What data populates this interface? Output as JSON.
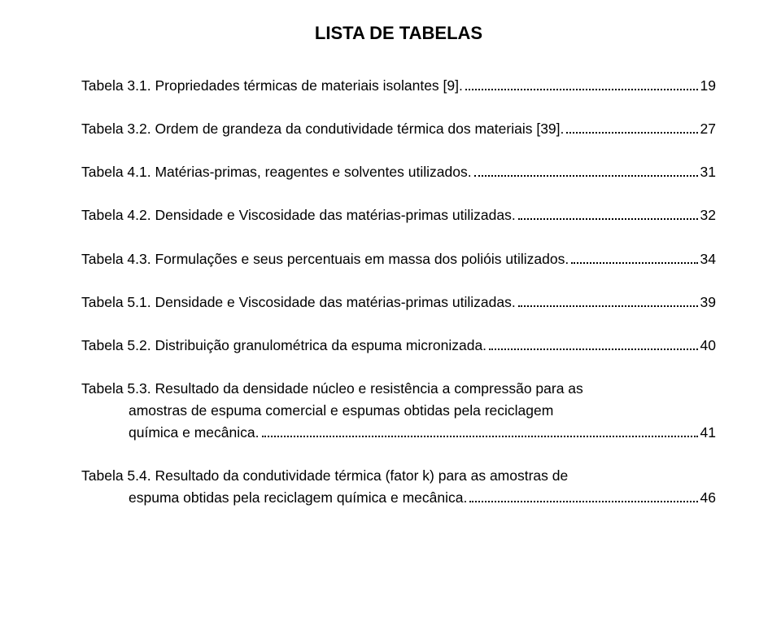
{
  "title": "LISTA DE TABELAS",
  "entries": [
    {
      "label": "Tabela 3.1. Propriedades térmicas de materiais isolantes [9].",
      "page": "19"
    },
    {
      "label": "Tabela 3.2. Ordem de grandeza da condutividade térmica dos materiais [39].",
      "page": "27"
    },
    {
      "label": "Tabela 4.1. Matérias-primas, reagentes e solventes utilizados.",
      "page": "31"
    },
    {
      "label": "Tabela 4.2. Densidade e Viscosidade das matérias-primas utilizadas.",
      "page": "32"
    },
    {
      "label": "Tabela 4.3. Formulações  e seus percentuais em massa dos polióis utilizados.",
      "page": "34"
    },
    {
      "label": "Tabela 5.1. Densidade e Viscosidade das matérias-primas utilizadas.",
      "page": "39"
    },
    {
      "label": "Tabela 5.2. Distribuição granulométrica da espuma micronizada.",
      "page": "40"
    },
    {
      "multiline": true,
      "line1": "Tabela 5.3. Resultado da densidade núcleo e resistência a compressão para as",
      "line2": "amostras de espuma comercial e espumas obtidas pela reciclagem",
      "line3": "química e mecânica.",
      "page": "41"
    },
    {
      "multiline": true,
      "line1": "Tabela 5.4. Resultado da condutividade térmica (fator k) para as amostras de",
      "line3": "espuma obtidas pela reciclagem química e mecânica.",
      "page": "46"
    }
  ],
  "colors": {
    "text": "#000000",
    "background": "#ffffff"
  },
  "typography": {
    "title_fontsize": 22,
    "body_fontsize": 17.5,
    "font_family": "Arial"
  }
}
